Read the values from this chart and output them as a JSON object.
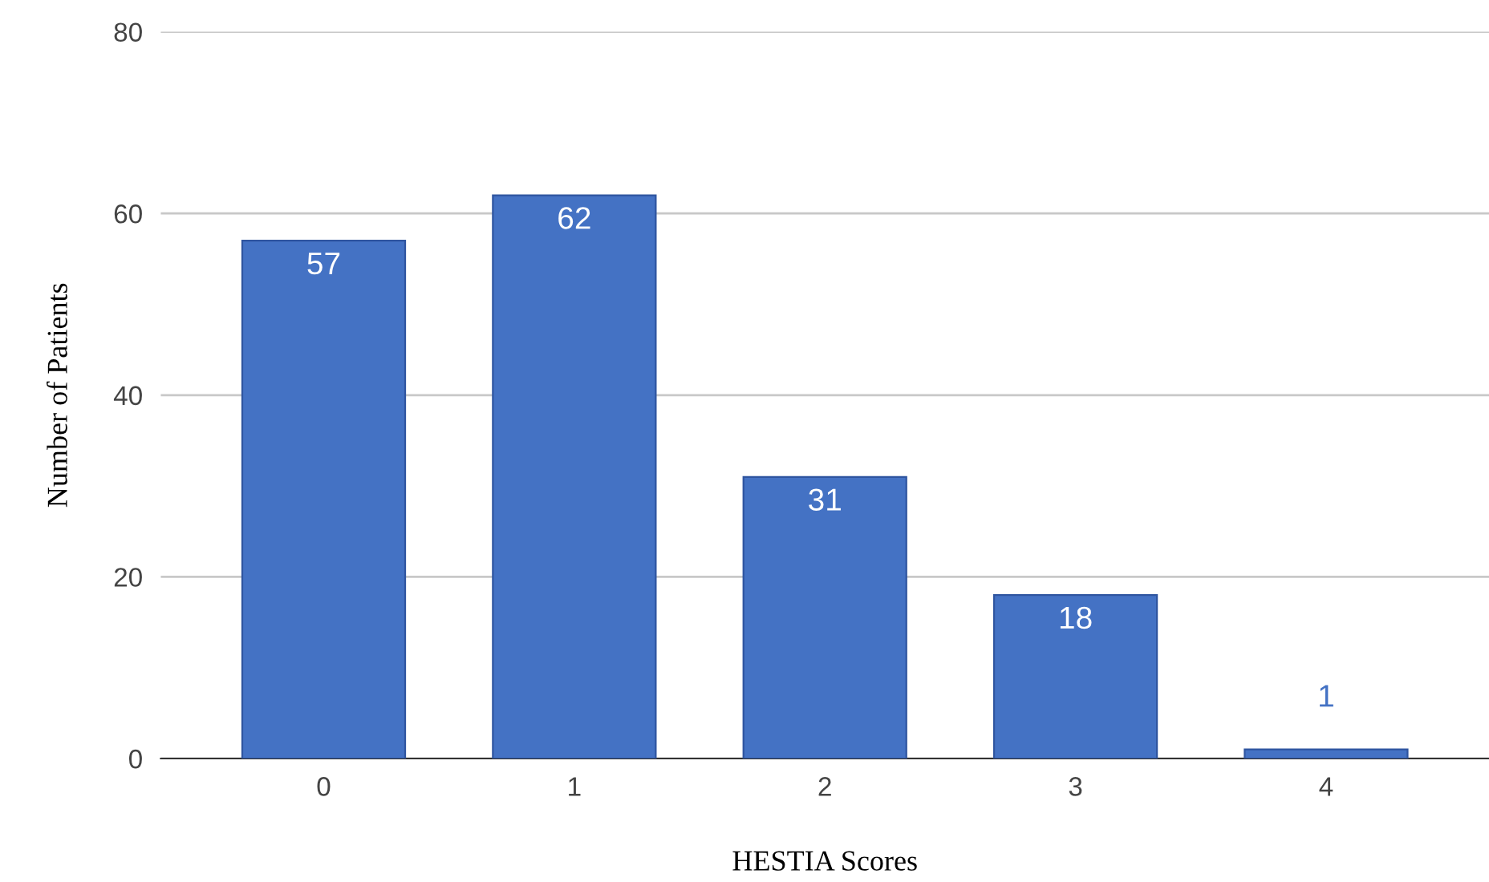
{
  "chart_data": {
    "type": "bar",
    "xlabel": "HESTIA Scores",
    "ylabel": "Number of Patients",
    "categories": [
      "0",
      "1",
      "2",
      "3",
      "4"
    ],
    "values": [
      57,
      62,
      31,
      18,
      1
    ],
    "color": "#4472c4",
    "ylim": [
      0,
      80
    ],
    "yticks": [
      0,
      20,
      40,
      60,
      80
    ],
    "grid": "y",
    "data_labels": true
  }
}
